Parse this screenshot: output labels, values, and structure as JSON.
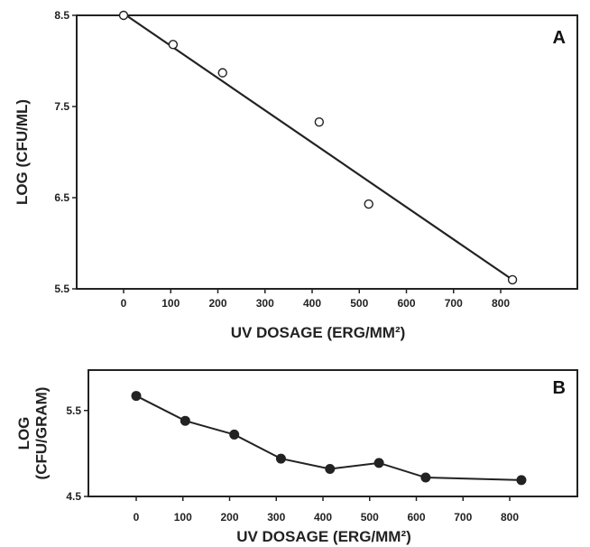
{
  "chart_data": [
    {
      "panel_label": "A",
      "type": "scatter",
      "xlabel": "UV DOSAGE (ERG/MM²)",
      "ylabel": "LOG (CFU/ML)",
      "xlim": [
        -100,
        920
      ],
      "ylim": [
        5.5,
        8.5
      ],
      "x_ticks": [
        "0",
        "100",
        "200",
        "300",
        "400",
        "500",
        "600",
        "700",
        "800"
      ],
      "y_ticks": [
        "5.5",
        "6.5",
        "7.5",
        "8.5"
      ],
      "marker": "open-circle",
      "series": [
        {
          "points": [
            {
              "x": 0,
              "y": 8.5
            },
            {
              "x": 105,
              "y": 8.18
            },
            {
              "x": 210,
              "y": 7.87
            },
            {
              "x": 415,
              "y": 7.33
            },
            {
              "x": 520,
              "y": 6.43
            },
            {
              "x": 825,
              "y": 5.6
            }
          ]
        }
      ],
      "fit_line": [
        {
          "x": 0,
          "y": 8.52
        },
        {
          "x": 825,
          "y": 5.6
        }
      ]
    },
    {
      "panel_label": "B",
      "type": "line",
      "xlabel": "UV DOSAGE (ERG/MM²)",
      "ylabel": [
        "LOG",
        "(CFU/GRAM)"
      ],
      "xlim": [
        -100,
        920
      ],
      "ylim": [
        4.5,
        5.97
      ],
      "x_ticks": [
        "0",
        "100",
        "200",
        "300",
        "400",
        "500",
        "600",
        "700",
        "800"
      ],
      "y_ticks": [
        "4.5",
        "5.5"
      ],
      "marker": "filled-circle",
      "series": [
        {
          "points": [
            {
              "x": 0,
              "y": 5.67
            },
            {
              "x": 105,
              "y": 5.38
            },
            {
              "x": 210,
              "y": 5.22
            },
            {
              "x": 310,
              "y": 4.94
            },
            {
              "x": 415,
              "y": 4.82
            },
            {
              "x": 520,
              "y": 4.89
            },
            {
              "x": 620,
              "y": 4.72
            },
            {
              "x": 825,
              "y": 4.69
            }
          ]
        }
      ]
    }
  ]
}
